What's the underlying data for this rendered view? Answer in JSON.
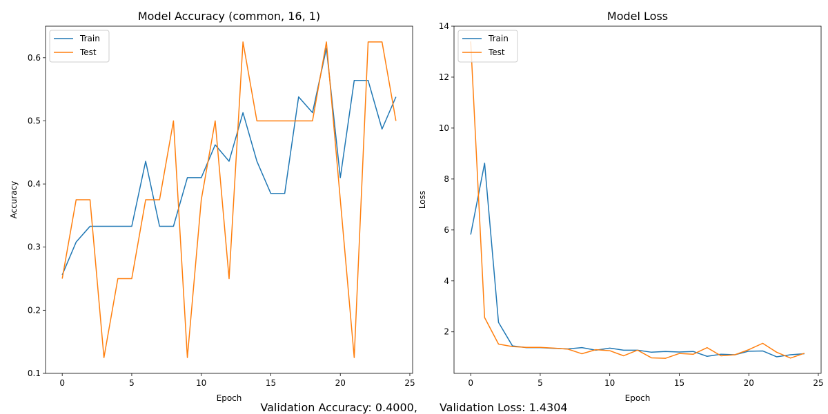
{
  "chart_data": [
    {
      "type": "line",
      "title": "Model Accuracy (common, 16, 1)",
      "xlabel": "Epoch",
      "ylabel": "Accuracy",
      "xlim": [
        -1.2,
        25.2
      ],
      "ylim": [
        0.1,
        0.65
      ],
      "xticks": [
        0,
        5,
        10,
        15,
        20,
        25
      ],
      "yticks": [
        0.1,
        0.2,
        0.3,
        0.4,
        0.5,
        0.6
      ],
      "legend": "top-left",
      "x": [
        0,
        1,
        2,
        3,
        4,
        5,
        6,
        7,
        8,
        9,
        10,
        11,
        12,
        13,
        14,
        15,
        16,
        17,
        18,
        19,
        20,
        21,
        22,
        23,
        24
      ],
      "series": [
        {
          "name": "Train",
          "color": "#1f77b4",
          "values": [
            0.256,
            0.308,
            0.333,
            0.333,
            0.333,
            0.333,
            0.436,
            0.333,
            0.333,
            0.41,
            0.41,
            0.462,
            0.436,
            0.513,
            0.436,
            0.385,
            0.385,
            0.538,
            0.513,
            0.615,
            0.41,
            0.564,
            0.564,
            0.487,
            0.538
          ]
        },
        {
          "name": "Test",
          "color": "#ff7f0e",
          "values": [
            0.25,
            0.375,
            0.375,
            0.125,
            0.25,
            0.25,
            0.375,
            0.375,
            0.5,
            0.125,
            0.375,
            0.5,
            0.25,
            0.625,
            0.5,
            0.5,
            0.5,
            0.5,
            0.5,
            0.625,
            0.375,
            0.125,
            0.625,
            0.625,
            0.5
          ]
        }
      ]
    },
    {
      "type": "line",
      "title": "Model Loss",
      "xlabel": "Epoch",
      "ylabel": "Loss",
      "xlim": [
        -1.2,
        25.2
      ],
      "ylim": [
        0.37,
        14.0
      ],
      "xticks": [
        0,
        5,
        10,
        15,
        20,
        25
      ],
      "yticks": [
        2,
        4,
        6,
        8,
        10,
        12,
        14
      ],
      "legend": "top-left",
      "x": [
        0,
        1,
        2,
        3,
        4,
        5,
        6,
        7,
        8,
        9,
        10,
        11,
        12,
        13,
        14,
        15,
        16,
        17,
        18,
        19,
        20,
        21,
        22,
        23,
        24
      ],
      "series": [
        {
          "name": "Train",
          "color": "#1f77b4",
          "values": [
            5.82,
            8.62,
            2.37,
            1.45,
            1.38,
            1.38,
            1.35,
            1.33,
            1.38,
            1.28,
            1.36,
            1.28,
            1.28,
            1.2,
            1.23,
            1.21,
            1.23,
            1.04,
            1.12,
            1.1,
            1.24,
            1.25,
            1.02,
            1.1,
            1.14
          ]
        },
        {
          "name": "Test",
          "color": "#ff7f0e",
          "values": [
            13.4,
            2.56,
            1.52,
            1.42,
            1.39,
            1.39,
            1.36,
            1.32,
            1.14,
            1.3,
            1.26,
            1.06,
            1.28,
            0.98,
            0.96,
            1.15,
            1.12,
            1.38,
            1.06,
            1.1,
            1.3,
            1.55,
            1.2,
            0.97,
            1.16
          ]
        }
      ]
    }
  ],
  "footer": {
    "accuracy": "Validation Accuracy: 0.4000,",
    "loss": "Validation Loss: 1.4304"
  }
}
